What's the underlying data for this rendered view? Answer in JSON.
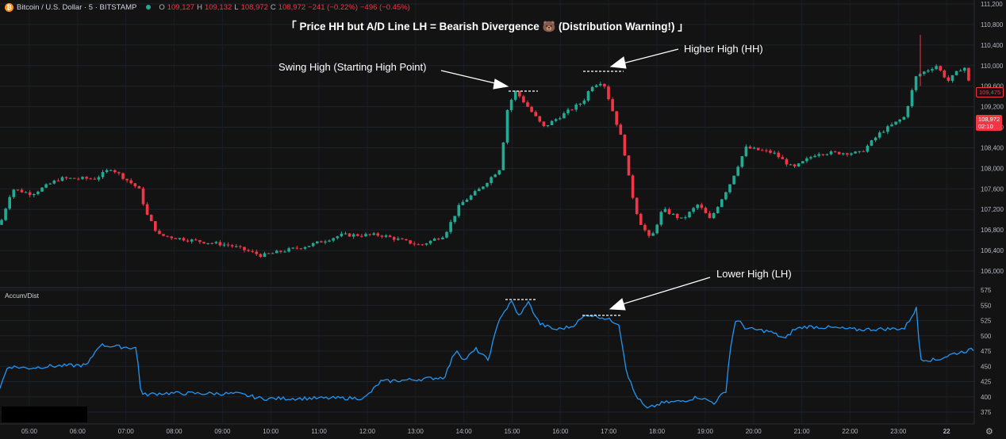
{
  "symbol": {
    "name": "Bitcoin / U.S. Dollar · 5 · BITSTAMP",
    "icon": "bitcoin-icon",
    "status_icon": "market-open-dot-icon"
  },
  "ohlc": {
    "o_label": "O",
    "o": "109,127",
    "h_label": "H",
    "h": "109,132",
    "l_label": "L",
    "l": "108,972",
    "c_label": "C",
    "c": "108,972",
    "change": "−241 (−0.22%)",
    "extra": "−496 (−0.45%)"
  },
  "title": "「 Price HH but A/D Line LH = Bearish Divergence 🐻 (Distribution Warning!) 」",
  "annotations": {
    "swing_high": "Swing High (Starting High Point)",
    "higher_high": "Higher High (HH)",
    "lower_high": "Lower High (LH)"
  },
  "indicator": {
    "name": "Accum/Dist"
  },
  "price_axis": [
    "111,200",
    "110,800",
    "110,400",
    "110,000",
    "109,600",
    "109,200",
    "108,800",
    "108,400",
    "108,000",
    "107,600",
    "107,200",
    "106,800",
    "106,400",
    "106,000"
  ],
  "price_tags": {
    "prev": "109,475",
    "last": "108,972",
    "countdown": "02:10"
  },
  "ad_axis": [
    "575",
    "550",
    "525",
    "500",
    "475",
    "450",
    "425",
    "400",
    "375"
  ],
  "time_axis": [
    "05:00",
    "06:00",
    "07:00",
    "08:00",
    "09:00",
    "10:00",
    "11:00",
    "12:00",
    "13:00",
    "14:00",
    "15:00",
    "16:00",
    "17:00",
    "18:00",
    "19:00",
    "20:00",
    "21:00",
    "22:00",
    "23:00",
    "22"
  ],
  "colors": {
    "up": "#22ab94",
    "down": "#f23645",
    "ad_line": "#2196f3",
    "background": "#131313"
  },
  "chart_data": [
    {
      "type": "candlestick",
      "title": "Bitcoin / U.S. Dollar · 5 · BITSTAMP",
      "x": [
        "05:00",
        "06:00",
        "07:00",
        "08:00",
        "09:00",
        "10:00",
        "11:00",
        "12:00",
        "13:00",
        "14:00",
        "15:00",
        "16:00",
        "17:00",
        "18:00",
        "19:00",
        "20:00",
        "21:00",
        "22:00",
        "23:00",
        "22"
      ],
      "ylim": [
        106000,
        111200
      ],
      "close_path": [
        [
          0,
          106900
        ],
        [
          15,
          107600
        ],
        [
          40,
          107500
        ],
        [
          75,
          107800
        ],
        [
          120,
          107800
        ],
        [
          140,
          108000
        ],
        [
          175,
          107600
        ],
        [
          185,
          107100
        ],
        [
          200,
          106700
        ],
        [
          240,
          106600
        ],
        [
          290,
          106500
        ],
        [
          330,
          106300
        ],
        [
          390,
          106500
        ],
        [
          430,
          106700
        ],
        [
          480,
          106700
        ],
        [
          530,
          106500
        ],
        [
          560,
          106700
        ],
        [
          580,
          107300
        ],
        [
          605,
          107600
        ],
        [
          630,
          108000
        ],
        [
          640,
          109200
        ],
        [
          650,
          109500
        ],
        [
          665,
          109200
        ],
        [
          685,
          108800
        ],
        [
          705,
          109000
        ],
        [
          735,
          109300
        ],
        [
          745,
          109600
        ],
        [
          760,
          109700
        ],
        [
          785,
          108500
        ],
        [
          795,
          107600
        ],
        [
          805,
          107000
        ],
        [
          820,
          106600
        ],
        [
          835,
          107200
        ],
        [
          860,
          107000
        ],
        [
          880,
          107300
        ],
        [
          895,
          107000
        ],
        [
          920,
          107700
        ],
        [
          940,
          108400
        ],
        [
          975,
          108300
        ],
        [
          1000,
          108000
        ],
        [
          1030,
          108300
        ],
        [
          1060,
          108300
        ],
        [
          1085,
          108300
        ],
        [
          1110,
          108700
        ],
        [
          1140,
          109000
        ],
        [
          1155,
          109800
        ],
        [
          1180,
          110000
        ],
        [
          1195,
          109700
        ],
        [
          1215,
          110000
        ],
        [
          1225,
          109475
        ]
      ],
      "last_close": 108972
    },
    {
      "type": "line",
      "series": [
        {
          "name": "Accum/Dist",
          "values": [
            [
              0,
              415
            ],
            [
              10,
              450
            ],
            [
              35,
              447
            ],
            [
              60,
              450
            ],
            [
              110,
              452
            ],
            [
              125,
              485
            ],
            [
              150,
              482
            ],
            [
              172,
              480
            ],
            [
              178,
              403
            ],
            [
              205,
              406
            ],
            [
              300,
              405
            ],
            [
              330,
              397
            ],
            [
              460,
              398
            ],
            [
              480,
              425
            ],
            [
              520,
              428
            ],
            [
              560,
              432
            ],
            [
              575,
              478
            ],
            [
              585,
              460
            ],
            [
              600,
              478
            ],
            [
              615,
              460
            ],
            [
              630,
              530
            ],
            [
              645,
              556
            ],
            [
              655,
              530
            ],
            [
              665,
              557
            ],
            [
              680,
              520
            ],
            [
              700,
              510
            ],
            [
              720,
              515
            ],
            [
              740,
              535
            ],
            [
              760,
              530
            ],
            [
              780,
              520
            ],
            [
              790,
              440
            ],
            [
              800,
              405
            ],
            [
              815,
              380
            ],
            [
              835,
              390
            ],
            [
              860,
              393
            ],
            [
              880,
              400
            ],
            [
              900,
              390
            ],
            [
              915,
              410
            ],
            [
              920,
              475
            ],
            [
              927,
              525
            ],
            [
              935,
              520
            ],
            [
              940,
              512
            ],
            [
              970,
              507
            ],
            [
              990,
              495
            ],
            [
              1000,
              510
            ],
            [
              1015,
              515
            ],
            [
              1040,
              514
            ],
            [
              1080,
              510
            ],
            [
              1140,
              512
            ],
            [
              1155,
              545
            ],
            [
              1160,
              462
            ],
            [
              1180,
              460
            ],
            [
              1200,
              470
            ],
            [
              1228,
              478
            ]
          ]
        }
      ],
      "ylim": [
        365,
        575
      ]
    }
  ]
}
